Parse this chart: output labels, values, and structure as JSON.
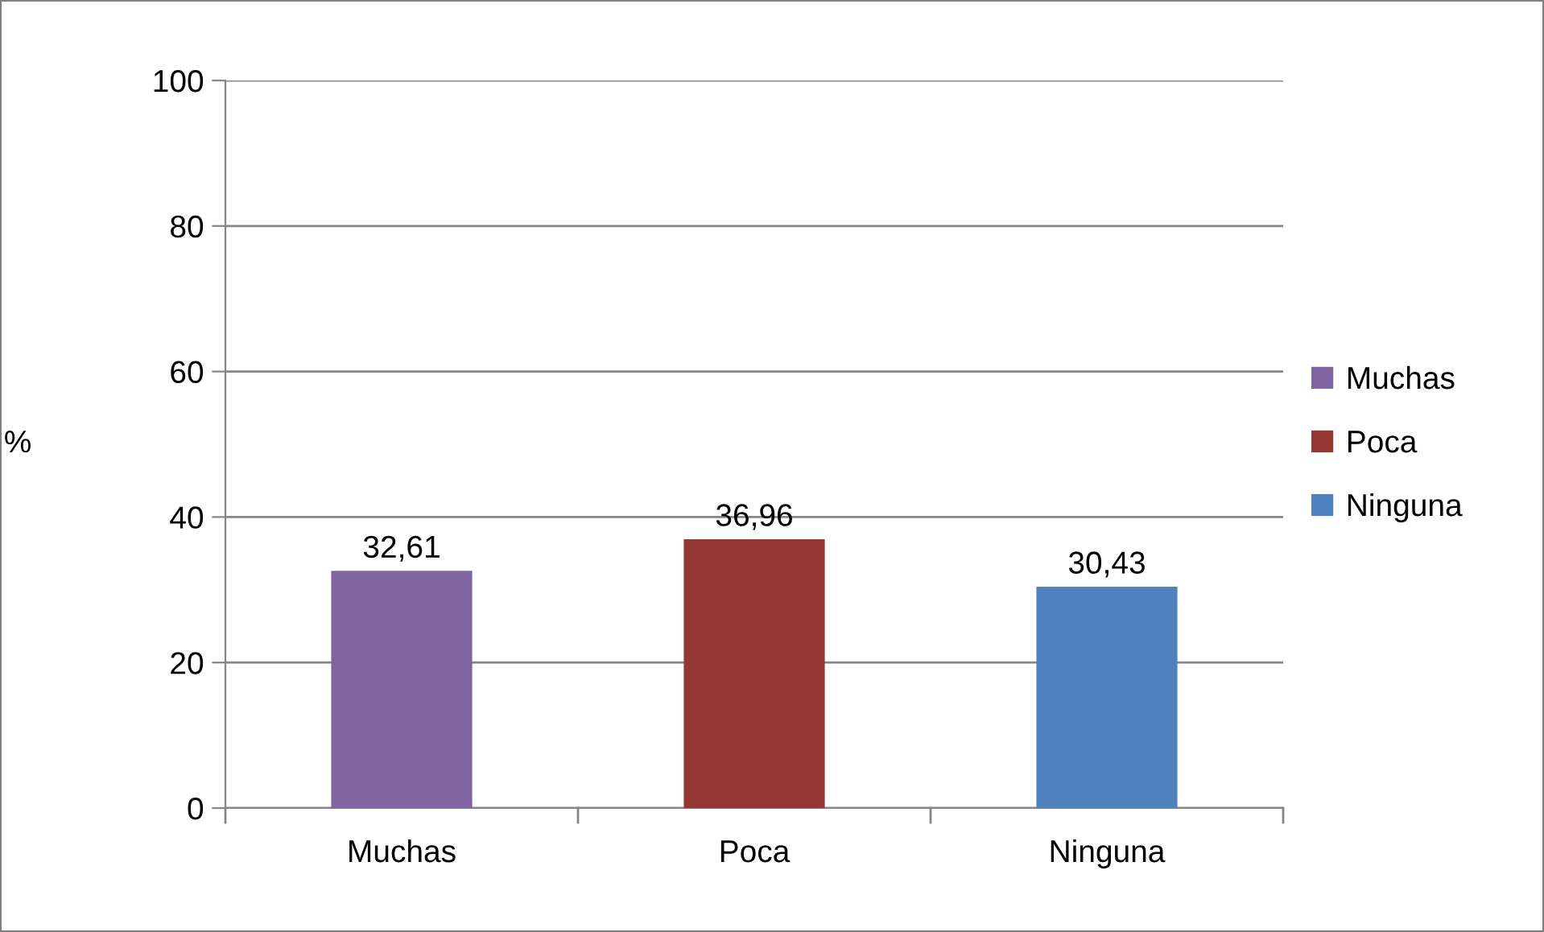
{
  "chart_data": {
    "type": "bar",
    "ylabel": "%",
    "categories": [
      "Muchas",
      "Poca",
      "Ninguna"
    ],
    "series": [
      {
        "name": "Muchas",
        "color": "#8064a2",
        "values": [
          32.61,
          null,
          null
        ],
        "value_labels": [
          "32,61",
          null,
          null
        ]
      },
      {
        "name": "Poca",
        "color": "#953735",
        "values": [
          null,
          36.96,
          null
        ],
        "value_labels": [
          null,
          "36,96",
          null
        ]
      },
      {
        "name": "Ninguna",
        "color": "#4f81bd",
        "values": [
          null,
          null,
          30.43
        ],
        "value_labels": [
          null,
          null,
          "30,43"
        ]
      }
    ],
    "ylim": [
      0,
      100
    ],
    "yticks": [
      0,
      20,
      40,
      60,
      80,
      100
    ],
    "grid": "y",
    "legend": "right"
  }
}
